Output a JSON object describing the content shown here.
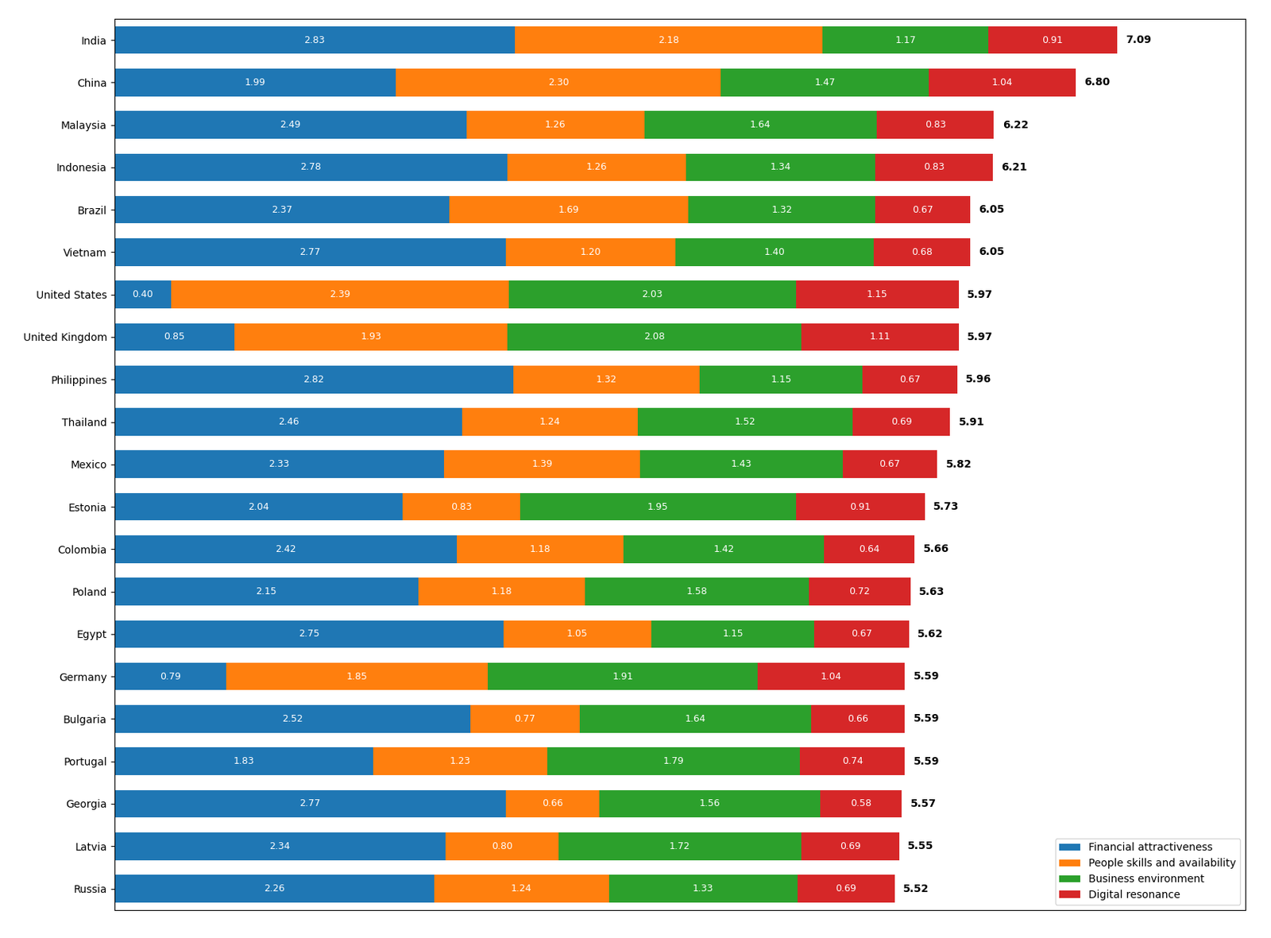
{
  "chart_data": {
    "type": "bar",
    "orientation": "horizontal",
    "stacked": true,
    "data_labels": true,
    "tick_labels": "y",
    "grid": false,
    "legend": "lower right",
    "categories": [
      "India",
      "China",
      "Malaysia",
      "Indonesia",
      "Brazil",
      "Vietnam",
      "United States",
      "United Kingdom",
      "Philippines",
      "Thailand",
      "Mexico",
      "Estonia",
      "Colombia",
      "Poland",
      "Egypt",
      "Germany",
      "Bulgaria",
      "Portugal",
      "Georgia",
      "Latvia",
      "Russia"
    ],
    "xlim": [
      0,
      8
    ],
    "series": [
      {
        "name": "Financial attractiveness",
        "values": [
          2.83,
          1.99,
          2.49,
          2.78,
          2.37,
          2.77,
          0.4,
          0.85,
          2.82,
          2.46,
          2.33,
          2.04,
          2.42,
          2.15,
          2.75,
          0.79,
          2.52,
          1.83,
          2.77,
          2.34,
          2.26
        ],
        "value_labels": [
          "2.83",
          "1.99",
          "2.49",
          "2.78",
          "2.37",
          "2.77",
          "0.40",
          "0.85",
          "2.82",
          "2.46",
          "2.33",
          "2.04",
          "2.42",
          "2.15",
          "2.75",
          "0.79",
          "2.52",
          "1.83",
          "2.77",
          "2.34",
          "2.26"
        ]
      },
      {
        "name": "People skills and availability",
        "values": [
          2.18,
          2.3,
          1.26,
          1.26,
          1.69,
          1.2,
          2.39,
          1.93,
          1.32,
          1.24,
          1.39,
          0.83,
          1.18,
          1.18,
          1.05,
          1.85,
          0.77,
          1.23,
          0.66,
          0.8,
          1.24
        ],
        "value_labels": [
          "2.18",
          "2.30",
          "1.26",
          "1.26",
          "1.69",
          "1.20",
          "2.39",
          "1.93",
          "1.32",
          "1.24",
          "1.39",
          "0.83",
          "1.18",
          "1.18",
          "1.05",
          "1.85",
          "0.77",
          "1.23",
          "0.66",
          "0.80",
          "1.24"
        ]
      },
      {
        "name": "Business environment",
        "values": [
          1.17,
          1.47,
          1.64,
          1.34,
          1.32,
          1.4,
          2.03,
          2.08,
          1.15,
          1.52,
          1.43,
          1.95,
          1.42,
          1.58,
          1.15,
          1.91,
          1.64,
          1.79,
          1.56,
          1.72,
          1.33
        ],
        "value_labels": [
          "1.17",
          "1.47",
          "1.64",
          "1.34",
          "1.32",
          "1.40",
          "2.03",
          "2.08",
          "1.15",
          "1.52",
          "1.43",
          "1.95",
          "1.42",
          "1.58",
          "1.15",
          "1.91",
          "1.64",
          "1.79",
          "1.56",
          "1.72",
          "1.33"
        ]
      },
      {
        "name": "Digital resonance",
        "values": [
          0.91,
          1.04,
          0.83,
          0.83,
          0.67,
          0.68,
          1.15,
          1.11,
          0.67,
          0.69,
          0.67,
          0.91,
          0.64,
          0.72,
          0.67,
          1.04,
          0.66,
          0.74,
          0.58,
          0.69,
          0.69
        ],
        "value_labels": [
          "0.91",
          "1.04",
          "0.83",
          "0.83",
          "0.67",
          "0.68",
          "1.15",
          "1.11",
          "0.67",
          "0.69",
          "0.67",
          "0.91",
          "0.64",
          "0.72",
          "0.67",
          "1.04",
          "0.66",
          "0.74",
          "0.58",
          "0.69",
          "0.69"
        ]
      }
    ],
    "totals": [
      7.09,
      6.8,
      6.22,
      6.21,
      6.05,
      6.05,
      5.97,
      5.97,
      5.96,
      5.91,
      5.82,
      5.73,
      5.66,
      5.63,
      5.62,
      5.59,
      5.59,
      5.59,
      5.57,
      5.55,
      5.52
    ],
    "total_labels": [
      "7.09",
      "6.80",
      "6.22",
      "6.21",
      "6.05",
      "6.05",
      "5.97",
      "5.97",
      "5.96",
      "5.91",
      "5.82",
      "5.73",
      "5.66",
      "5.63",
      "5.62",
      "5.59",
      "5.59",
      "5.59",
      "5.57",
      "5.55",
      "5.52"
    ]
  }
}
